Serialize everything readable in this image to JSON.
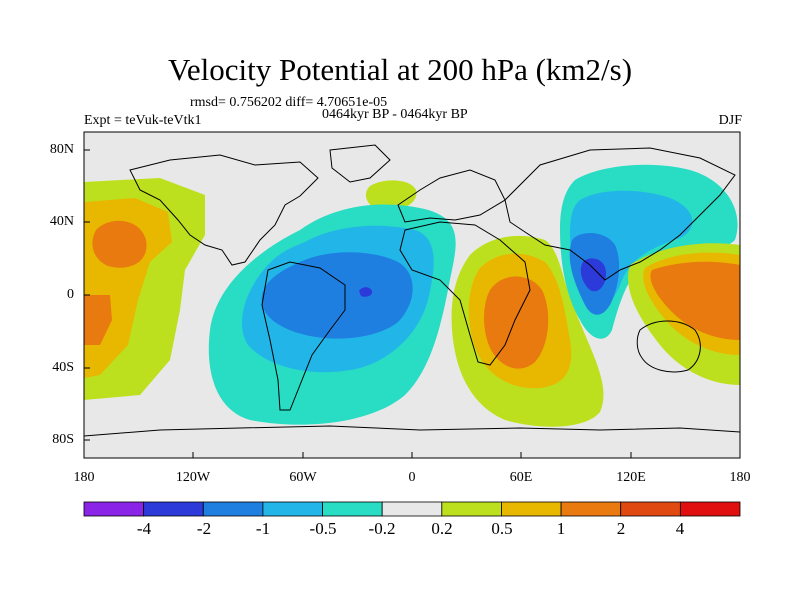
{
  "title": "Velocity Potential at 200 hPa (km2/s)",
  "stats_line": "rmsd= 0.756202 diff= 4.70651e-05",
  "period_line": "0464kyr BP - 0464kyr BP",
  "left_label": "Expt = teVuk-teVtk1",
  "right_label": "DJF",
  "chart_data": {
    "type": "heatmap",
    "title": "Velocity Potential at 200 hPa (km2/s)",
    "x_ticks": [
      "180",
      "120W",
      "60W",
      "0",
      "60E",
      "120E",
      "180"
    ],
    "x_tick_values": [
      -180,
      -120,
      -60,
      0,
      60,
      120,
      180
    ],
    "y_ticks": [
      "80N",
      "40N",
      "0",
      "40S",
      "80S"
    ],
    "y_tick_values": [
      80,
      40,
      0,
      -40,
      -80
    ],
    "xlim": [
      -180,
      180
    ],
    "ylim": [
      -90,
      90
    ],
    "colorbar": {
      "labels": [
        "-4",
        "-2",
        "-1",
        "-0.5",
        "-0.2",
        "0.2",
        "0.5",
        "1",
        "2",
        "4"
      ],
      "levels": [
        -4,
        -2,
        -1,
        -0.5,
        -0.2,
        0.2,
        0.5,
        1,
        2,
        4
      ],
      "colors": [
        "#8a24e6",
        "#2b3ad8",
        "#1f7fe0",
        "#22b6e8",
        "#29dcc4",
        "#e8e8e8",
        "#bde01e",
        "#e8b800",
        "#e87a10",
        "#e04a10",
        "#e01010"
      ]
    },
    "features": [
      {
        "region": "central Pacific 20N-50N, 160E-150W",
        "level_range": [
          1,
          2
        ]
      },
      {
        "region": "Atlantic / South America 50N-45S, 100W-10E",
        "level_range": [
          -1,
          -0.5
        ]
      },
      {
        "region": "tropical Atlantic near equator, 25W",
        "level_range": [
          -4,
          -2
        ]
      },
      {
        "region": "Africa / western Indian Ocean 25N-50S, 30E-75E",
        "level_range": [
          1,
          2
        ]
      },
      {
        "region": "Asia / eastern Indian Ocean 70N-30S, 80E-130E",
        "level_range": [
          -1,
          -0.5
        ]
      },
      {
        "region": "Bay of Bengal / Southeast Asia near 95E-105E",
        "level_range": [
          -2,
          -1
        ]
      },
      {
        "region": "western Pacific / Australia 30N-35S, 120E-180",
        "level_range": [
          1,
          2
        ]
      }
    ]
  }
}
